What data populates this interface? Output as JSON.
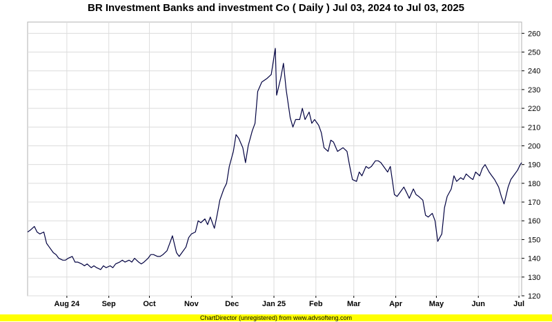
{
  "chart_data": {
    "type": "line",
    "title": "BR Investment Banks and investment Co ( Daily ) Jul 03, 2024 to Jul 03, 2025",
    "xlabel": "",
    "ylabel": "",
    "ylim": [
      120,
      266
    ],
    "y_ticks": [
      120,
      130,
      140,
      150,
      160,
      170,
      180,
      190,
      200,
      210,
      220,
      230,
      240,
      250,
      260
    ],
    "y_axis_position": "right",
    "grid": true,
    "x_ticks": [
      {
        "label": "Aug 24",
        "date": "2024-08-01"
      },
      {
        "label": "Sep",
        "date": "2024-09-01"
      },
      {
        "label": "Oct",
        "date": "2024-10-01"
      },
      {
        "label": "Nov",
        "date": "2024-11-01"
      },
      {
        "label": "Dec",
        "date": "2024-12-01"
      },
      {
        "label": "Jan 25",
        "date": "2025-01-01"
      },
      {
        "label": "Feb",
        "date": "2025-02-01"
      },
      {
        "label": "Mar",
        "date": "2025-03-01"
      },
      {
        "label": "Apr",
        "date": "2025-04-01"
      },
      {
        "label": "May",
        "date": "2025-05-01"
      },
      {
        "label": "Jun",
        "date": "2025-06-01"
      },
      {
        "label": "Jul",
        "date": "2025-07-01"
      }
    ],
    "xlim": [
      "2024-07-03",
      "2025-07-03"
    ],
    "series": [
      {
        "name": "",
        "color": "#000040",
        "x": [
          "2024-07-03",
          "2024-07-05",
          "2024-07-08",
          "2024-07-10",
          "2024-07-12",
          "2024-07-15",
          "2024-07-17",
          "2024-07-19",
          "2024-07-22",
          "2024-07-24",
          "2024-07-26",
          "2024-07-29",
          "2024-07-31",
          "2024-08-02",
          "2024-08-05",
          "2024-08-07",
          "2024-08-09",
          "2024-08-12",
          "2024-08-14",
          "2024-08-16",
          "2024-08-19",
          "2024-08-21",
          "2024-08-23",
          "2024-08-26",
          "2024-08-28",
          "2024-08-30",
          "2024-09-02",
          "2024-09-04",
          "2024-09-06",
          "2024-09-09",
          "2024-09-11",
          "2024-09-13",
          "2024-09-16",
          "2024-09-18",
          "2024-09-20",
          "2024-09-23",
          "2024-09-25",
          "2024-09-27",
          "2024-09-30",
          "2024-10-02",
          "2024-10-04",
          "2024-10-07",
          "2024-10-09",
          "2024-10-11",
          "2024-10-14",
          "2024-10-16",
          "2024-10-18",
          "2024-10-21",
          "2024-10-23",
          "2024-10-25",
          "2024-10-28",
          "2024-10-30",
          "2024-11-01",
          "2024-11-04",
          "2024-11-06",
          "2024-11-08",
          "2024-11-11",
          "2024-11-13",
          "2024-11-15",
          "2024-11-18",
          "2024-11-20",
          "2024-11-22",
          "2024-11-25",
          "2024-11-27",
          "2024-11-29",
          "2024-12-02",
          "2024-12-04",
          "2024-12-06",
          "2024-12-09",
          "2024-12-11",
          "2024-12-13",
          "2024-12-16",
          "2024-12-18",
          "2024-12-20",
          "2024-12-23",
          "2024-12-27",
          "2024-12-30",
          "2025-01-02",
          "2025-01-03",
          "2025-01-06",
          "2025-01-08",
          "2025-01-10",
          "2025-01-13",
          "2025-01-15",
          "2025-01-17",
          "2025-01-20",
          "2025-01-22",
          "2025-01-24",
          "2025-01-27",
          "2025-01-29",
          "2025-01-31",
          "2025-02-03",
          "2025-02-05",
          "2025-02-07",
          "2025-02-10",
          "2025-02-12",
          "2025-02-14",
          "2025-02-17",
          "2025-02-19",
          "2025-02-21",
          "2025-02-24",
          "2025-02-26",
          "2025-02-28",
          "2025-03-03",
          "2025-03-05",
          "2025-03-07",
          "2025-03-10",
          "2025-03-12",
          "2025-03-14",
          "2025-03-17",
          "2025-03-19",
          "2025-03-21",
          "2025-03-24",
          "2025-03-26",
          "2025-03-28",
          "2025-03-31",
          "2025-04-02",
          "2025-04-04",
          "2025-04-07",
          "2025-04-09",
          "2025-04-11",
          "2025-04-14",
          "2025-04-16",
          "2025-04-18",
          "2025-04-21",
          "2025-04-23",
          "2025-04-25",
          "2025-04-28",
          "2025-04-30",
          "2025-05-02",
          "2025-05-05",
          "2025-05-07",
          "2025-05-09",
          "2025-05-12",
          "2025-05-14",
          "2025-05-16",
          "2025-05-19",
          "2025-05-21",
          "2025-05-23",
          "2025-05-26",
          "2025-05-28",
          "2025-05-30",
          "2025-06-02",
          "2025-06-04",
          "2025-06-06",
          "2025-06-09",
          "2025-06-11",
          "2025-06-13",
          "2025-06-16",
          "2025-06-18",
          "2025-06-20",
          "2025-06-23",
          "2025-06-25",
          "2025-06-27",
          "2025-06-30",
          "2025-07-02",
          "2025-07-03"
        ],
        "y": [
          154,
          155,
          157,
          154,
          153,
          154,
          148,
          146,
          143,
          142,
          140,
          139,
          139,
          140,
          141,
          138,
          138,
          137,
          136,
          137,
          135,
          136,
          135,
          134,
          136,
          135,
          136,
          135,
          137,
          138,
          139,
          138,
          139,
          138,
          140,
          138,
          137,
          138,
          140,
          142,
          142,
          141,
          141,
          142,
          144,
          148,
          152,
          143,
          141,
          143,
          146,
          151,
          153,
          154,
          160,
          159,
          161,
          158,
          162,
          156,
          163,
          171,
          177,
          180,
          189,
          197,
          206,
          204,
          199,
          191,
          200,
          208,
          212,
          229,
          234,
          236,
          238,
          252,
          227,
          236,
          244,
          230,
          215,
          210,
          214,
          214,
          220,
          214,
          218,
          212,
          214,
          211,
          207,
          199,
          197,
          203,
          202,
          197,
          198,
          199,
          197,
          189,
          182,
          181,
          186,
          184,
          189,
          188,
          189,
          192,
          192,
          191,
          188,
          186,
          189,
          174,
          173,
          175,
          178,
          175,
          172,
          177,
          174,
          173,
          171,
          163,
          162,
          164,
          160,
          149,
          153,
          167,
          173,
          177,
          184,
          181,
          183,
          182,
          185,
          183,
          182,
          186,
          184,
          188,
          190,
          186,
          184,
          182,
          178,
          173,
          169,
          178,
          182,
          184,
          187,
          190,
          191
        ]
      }
    ]
  },
  "footer": {
    "credit": "ChartDirector (unregistered) from www.advsofteng.com",
    "bar_color": "#ffff00"
  }
}
